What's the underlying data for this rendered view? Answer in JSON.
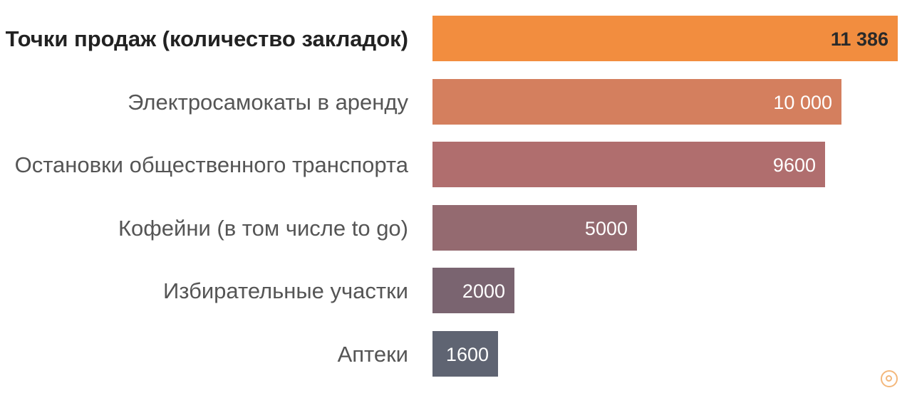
{
  "chart_data": {
    "type": "bar",
    "orientation": "horizontal",
    "categories": [
      "Точки продаж (количество закладок)",
      "Электросамокаты в аренду",
      "Остановки общественного транспорта",
      "Кофейни (в том числе to go)",
      "Избирательные участки",
      "Аптеки"
    ],
    "values": [
      11386,
      10000,
      9600,
      5000,
      2000,
      1600
    ],
    "value_labels": [
      "11 386",
      "10 000",
      "9600",
      "5000",
      "2000",
      "1600"
    ],
    "bar_colors": [
      "#f28d3f",
      "#d47f5e",
      "#b06e6e",
      "#946a70",
      "#7a6470",
      "#5f6472"
    ],
    "highlight_index": 0,
    "xlim": [
      0,
      11386
    ],
    "grid": false,
    "legend": "none"
  }
}
